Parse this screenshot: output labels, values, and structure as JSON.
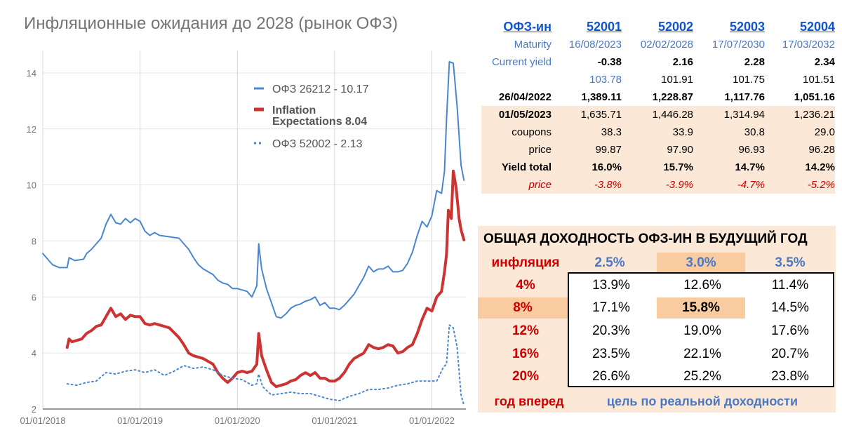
{
  "title": "Инфляционные ожидания до 2028 (рынок ОФЗ)",
  "chart_data": {
    "type": "line",
    "title": "Инфляционные ожидания до 2028 (рынок ОФЗ)",
    "y_ticks": [
      "2",
      "4",
      "6",
      "8",
      "10",
      "12",
      "14"
    ],
    "x_ticks": [
      "01/01/2018",
      "01/01/2019",
      "01/01/2020",
      "01/01/2021",
      "01/01/2022"
    ],
    "ylim": [
      2,
      14.8
    ],
    "xlim": [
      2018.0,
      2022.35
    ],
    "grid": true,
    "legend_position": "top-center",
    "series": [
      {
        "name": "ОФЗ 26212 - 10.17",
        "color": "#4a86d0",
        "style": "solid",
        "points": [
          [
            2018.0,
            7.55
          ],
          [
            2018.05,
            7.35
          ],
          [
            2018.1,
            7.15
          ],
          [
            2018.17,
            7.05
          ],
          [
            2018.25,
            7.05
          ],
          [
            2018.27,
            7.4
          ],
          [
            2018.33,
            7.3
          ],
          [
            2018.42,
            7.35
          ],
          [
            2018.45,
            7.55
          ],
          [
            2018.5,
            7.7
          ],
          [
            2018.55,
            7.9
          ],
          [
            2018.6,
            8.1
          ],
          [
            2018.65,
            8.6
          ],
          [
            2018.7,
            8.95
          ],
          [
            2018.75,
            8.65
          ],
          [
            2018.8,
            8.6
          ],
          [
            2018.85,
            8.8
          ],
          [
            2018.9,
            8.65
          ],
          [
            2018.95,
            8.8
          ],
          [
            2019.0,
            8.7
          ],
          [
            2019.05,
            8.35
          ],
          [
            2019.1,
            8.2
          ],
          [
            2019.15,
            8.3
          ],
          [
            2019.2,
            8.2
          ],
          [
            2019.3,
            8.15
          ],
          [
            2019.4,
            8.1
          ],
          [
            2019.45,
            7.9
          ],
          [
            2019.5,
            7.7
          ],
          [
            2019.55,
            7.4
          ],
          [
            2019.6,
            7.15
          ],
          [
            2019.65,
            7.0
          ],
          [
            2019.7,
            6.9
          ],
          [
            2019.75,
            6.8
          ],
          [
            2019.8,
            6.6
          ],
          [
            2019.85,
            6.5
          ],
          [
            2019.9,
            6.45
          ],
          [
            2019.95,
            6.3
          ],
          [
            2020.0,
            6.3
          ],
          [
            2020.05,
            6.25
          ],
          [
            2020.1,
            6.2
          ],
          [
            2020.15,
            6.0
          ],
          [
            2020.2,
            6.4
          ],
          [
            2020.22,
            7.9
          ],
          [
            2020.25,
            7.0
          ],
          [
            2020.3,
            6.3
          ],
          [
            2020.35,
            5.8
          ],
          [
            2020.4,
            5.3
          ],
          [
            2020.45,
            5.25
          ],
          [
            2020.5,
            5.4
          ],
          [
            2020.55,
            5.6
          ],
          [
            2020.6,
            5.7
          ],
          [
            2020.65,
            5.75
          ],
          [
            2020.7,
            5.85
          ],
          [
            2020.75,
            5.9
          ],
          [
            2020.8,
            6.0
          ],
          [
            2020.85,
            5.7
          ],
          [
            2020.9,
            5.8
          ],
          [
            2020.95,
            5.6
          ],
          [
            2021.0,
            5.6
          ],
          [
            2021.05,
            5.55
          ],
          [
            2021.1,
            5.7
          ],
          [
            2021.15,
            5.9
          ],
          [
            2021.2,
            6.1
          ],
          [
            2021.25,
            6.4
          ],
          [
            2021.3,
            6.7
          ],
          [
            2021.35,
            7.1
          ],
          [
            2021.4,
            6.9
          ],
          [
            2021.45,
            7.0
          ],
          [
            2021.5,
            7.0
          ],
          [
            2021.55,
            7.1
          ],
          [
            2021.6,
            6.9
          ],
          [
            2021.65,
            6.9
          ],
          [
            2021.7,
            6.95
          ],
          [
            2021.75,
            7.2
          ],
          [
            2021.8,
            7.6
          ],
          [
            2021.85,
            8.2
          ],
          [
            2021.9,
            8.7
          ],
          [
            2021.95,
            8.5
          ],
          [
            2022.0,
            8.9
          ],
          [
            2022.05,
            9.8
          ],
          [
            2022.1,
            9.7
          ],
          [
            2022.13,
            10.5
          ],
          [
            2022.15,
            12.3
          ],
          [
            2022.18,
            14.4
          ],
          [
            2022.22,
            14.35
          ],
          [
            2022.26,
            12.8
          ],
          [
            2022.3,
            10.7
          ],
          [
            2022.33,
            10.17
          ]
        ]
      },
      {
        "name": "Inflation Expectations 8.04",
        "color": "#cc3333",
        "style": "thick",
        "points": [
          [
            2018.25,
            4.2
          ],
          [
            2018.27,
            4.5
          ],
          [
            2018.3,
            4.4
          ],
          [
            2018.35,
            4.45
          ],
          [
            2018.4,
            4.5
          ],
          [
            2018.45,
            4.7
          ],
          [
            2018.5,
            4.8
          ],
          [
            2018.55,
            4.95
          ],
          [
            2018.6,
            5.0
          ],
          [
            2018.65,
            5.3
          ],
          [
            2018.7,
            5.6
          ],
          [
            2018.75,
            5.3
          ],
          [
            2018.8,
            5.4
          ],
          [
            2018.85,
            5.2
          ],
          [
            2018.9,
            5.35
          ],
          [
            2018.95,
            5.3
          ],
          [
            2019.0,
            5.3
          ],
          [
            2019.05,
            5.05
          ],
          [
            2019.1,
            5.0
          ],
          [
            2019.15,
            5.05
          ],
          [
            2019.2,
            5.0
          ],
          [
            2019.3,
            4.9
          ],
          [
            2019.4,
            4.55
          ],
          [
            2019.45,
            4.3
          ],
          [
            2019.5,
            4.0
          ],
          [
            2019.55,
            3.9
          ],
          [
            2019.6,
            3.85
          ],
          [
            2019.65,
            3.8
          ],
          [
            2019.7,
            3.7
          ],
          [
            2019.75,
            3.6
          ],
          [
            2019.8,
            3.3
          ],
          [
            2019.85,
            3.1
          ],
          [
            2019.9,
            2.95
          ],
          [
            2019.95,
            3.1
          ],
          [
            2020.0,
            3.3
          ],
          [
            2020.05,
            3.35
          ],
          [
            2020.1,
            3.3
          ],
          [
            2020.15,
            3.35
          ],
          [
            2020.2,
            3.6
          ],
          [
            2020.22,
            4.7
          ],
          [
            2020.25,
            3.9
          ],
          [
            2020.3,
            3.4
          ],
          [
            2020.35,
            2.95
          ],
          [
            2020.4,
            2.8
          ],
          [
            2020.45,
            2.85
          ],
          [
            2020.5,
            2.9
          ],
          [
            2020.55,
            3.0
          ],
          [
            2020.6,
            3.05
          ],
          [
            2020.65,
            3.2
          ],
          [
            2020.7,
            3.3
          ],
          [
            2020.75,
            3.2
          ],
          [
            2020.8,
            3.3
          ],
          [
            2020.85,
            3.1
          ],
          [
            2020.9,
            3.1
          ],
          [
            2020.95,
            3.0
          ],
          [
            2021.0,
            3.0
          ],
          [
            2021.05,
            3.1
          ],
          [
            2021.1,
            3.3
          ],
          [
            2021.15,
            3.6
          ],
          [
            2021.2,
            3.8
          ],
          [
            2021.25,
            3.9
          ],
          [
            2021.3,
            4.0
          ],
          [
            2021.35,
            4.3
          ],
          [
            2021.4,
            4.2
          ],
          [
            2021.45,
            4.15
          ],
          [
            2021.5,
            4.2
          ],
          [
            2021.55,
            4.3
          ],
          [
            2021.6,
            4.25
          ],
          [
            2021.65,
            4.0
          ],
          [
            2021.7,
            4.05
          ],
          [
            2021.75,
            4.2
          ],
          [
            2021.8,
            4.3
          ],
          [
            2021.85,
            4.7
          ],
          [
            2021.9,
            5.2
          ],
          [
            2021.95,
            5.6
          ],
          [
            2022.0,
            5.5
          ],
          [
            2022.05,
            6.0
          ],
          [
            2022.1,
            6.2
          ],
          [
            2022.13,
            6.9
          ],
          [
            2022.15,
            7.5
          ],
          [
            2022.17,
            9.1
          ],
          [
            2022.2,
            8.8
          ],
          [
            2022.22,
            10.5
          ],
          [
            2022.25,
            9.9
          ],
          [
            2022.28,
            8.8
          ],
          [
            2022.3,
            8.4
          ],
          [
            2022.33,
            8.04
          ]
        ]
      },
      {
        "name": "ОФЗ 52002 - 2.13",
        "color": "#4a86d0",
        "style": "dotted",
        "points": [
          [
            2018.25,
            2.9
          ],
          [
            2018.35,
            2.85
          ],
          [
            2018.45,
            2.95
          ],
          [
            2018.55,
            3.0
          ],
          [
            2018.65,
            3.3
          ],
          [
            2018.75,
            3.25
          ],
          [
            2018.85,
            3.35
          ],
          [
            2018.95,
            3.4
          ],
          [
            2019.05,
            3.3
          ],
          [
            2019.15,
            3.4
          ],
          [
            2019.25,
            3.2
          ],
          [
            2019.35,
            3.35
          ],
          [
            2019.45,
            3.55
          ],
          [
            2019.55,
            3.45
          ],
          [
            2019.65,
            3.5
          ],
          [
            2019.75,
            3.4
          ],
          [
            2019.85,
            3.2
          ],
          [
            2019.95,
            3.1
          ],
          [
            2020.05,
            3.05
          ],
          [
            2020.15,
            2.85
          ],
          [
            2020.2,
            2.9
          ],
          [
            2020.22,
            3.25
          ],
          [
            2020.26,
            2.8
          ],
          [
            2020.35,
            2.5
          ],
          [
            2020.45,
            2.55
          ],
          [
            2020.55,
            2.6
          ],
          [
            2020.65,
            2.55
          ],
          [
            2020.75,
            2.55
          ],
          [
            2020.85,
            2.45
          ],
          [
            2020.95,
            2.35
          ],
          [
            2021.05,
            2.3
          ],
          [
            2021.15,
            2.45
          ],
          [
            2021.25,
            2.55
          ],
          [
            2021.35,
            2.7
          ],
          [
            2021.45,
            2.7
          ],
          [
            2021.55,
            2.75
          ],
          [
            2021.65,
            2.85
          ],
          [
            2021.75,
            2.9
          ],
          [
            2021.85,
            3.0
          ],
          [
            2021.95,
            3.0
          ],
          [
            2022.05,
            3.0
          ],
          [
            2022.12,
            3.5
          ],
          [
            2022.15,
            3.6
          ],
          [
            2022.18,
            5.0
          ],
          [
            2022.22,
            4.9
          ],
          [
            2022.26,
            4.2
          ],
          [
            2022.3,
            2.5
          ],
          [
            2022.33,
            2.13
          ]
        ]
      }
    ]
  },
  "bonds_table": {
    "header": [
      "ОФЗ-ин",
      "52001",
      "52002",
      "52003",
      "52004"
    ],
    "rows": [
      {
        "label": "Maturity",
        "values": [
          "16/08/2023",
          "02/02/2028",
          "17/07/2030",
          "17/03/2032"
        ]
      },
      {
        "label": "Current yield",
        "values": [
          "-0.38",
          "2.16",
          "2.28",
          "2.34"
        ]
      },
      {
        "label": "",
        "values": [
          "103.78",
          "101.91",
          "101.75",
          "101.51"
        ]
      },
      {
        "label": "26/04/2022",
        "values": [
          "1,389.11",
          "1,228.87",
          "1,117.76",
          "1,051.16"
        ]
      },
      {
        "label": "01/05/2023",
        "values": [
          "1,635.71",
          "1,446.28",
          "1,314.94",
          "1,236.21"
        ]
      },
      {
        "label": "coupons",
        "values": [
          "38.3",
          "33.9",
          "30.8",
          "29.0"
        ]
      },
      {
        "label": "price",
        "values": [
          "99.87",
          "97.90",
          "96.93",
          "96.28"
        ]
      },
      {
        "label": "Yield total",
        "values": [
          "16.0%",
          "15.7%",
          "14.7%",
          "14.2%"
        ]
      },
      {
        "label": "price",
        "values": [
          "-3.8%",
          "-3.9%",
          "-4.7%",
          "-5.2%"
        ]
      }
    ]
  },
  "returns_table": {
    "title": "ОБЩАЯ ДОХОДНОСТЬ ОФЗ-ИН В БУДУЩИЙ ГОД",
    "corner_label": "инфляция",
    "col_headers": [
      "2.5%",
      "3.0%",
      "3.5%"
    ],
    "rows": [
      {
        "label": "4%",
        "values": [
          "13.9%",
          "12.6%",
          "11.4%"
        ]
      },
      {
        "label": "8%",
        "values": [
          "17.1%",
          "15.8%",
          "14.5%"
        ]
      },
      {
        "label": "12%",
        "values": [
          "20.3%",
          "19.0%",
          "17.6%"
        ]
      },
      {
        "label": "16%",
        "values": [
          "23.5%",
          "22.1%",
          "20.7%"
        ]
      },
      {
        "label": "20%",
        "values": [
          "26.6%",
          "25.2%",
          "23.8%"
        ]
      }
    ],
    "footer_left": "год вперед",
    "footer_right": "цель по реальной доходности"
  }
}
